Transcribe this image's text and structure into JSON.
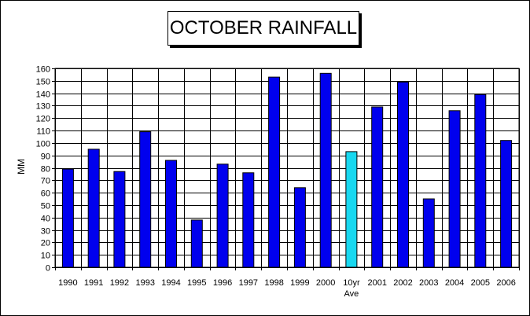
{
  "chart_data": {
    "type": "bar",
    "title": "OCTOBER RAINFALL",
    "xlabel": "",
    "ylabel": "MM",
    "ylim": [
      0,
      160
    ],
    "ytick_step": 10,
    "grid": true,
    "categories": [
      "1990",
      "1991",
      "1992",
      "1993",
      "1994",
      "1995",
      "1996",
      "1997",
      "1998",
      "1999",
      "2000",
      "10yr Ave",
      "2001",
      "2002",
      "2003",
      "2004",
      "2005",
      "2006"
    ],
    "values": [
      79,
      95,
      77,
      109,
      86,
      38,
      83,
      76,
      153,
      64,
      156,
      93,
      129,
      149,
      55,
      126,
      139,
      102
    ],
    "colors": {
      "bar": "#0000ee",
      "highlight": "#18d8f0",
      "outline": "#000000",
      "plot_bg": "#ffffff"
    },
    "highlight_category": "10yr Ave"
  }
}
